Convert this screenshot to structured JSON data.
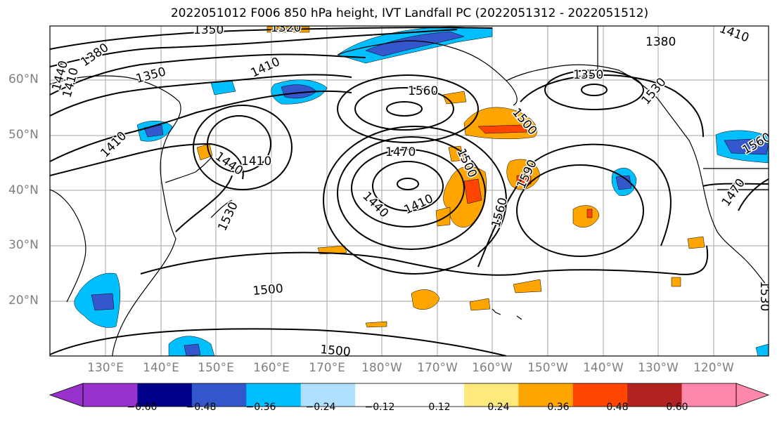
{
  "title": "2022051012 F006 850 hPa height, IVT Landfall PC (2022051312 - 2022051512)",
  "lat_labels": [
    "60°N",
    "50°N",
    "40°N",
    "30°N",
    "20°N"
  ],
  "lon_labels": [
    "130°E",
    "140°E",
    "150°E",
    "160°E",
    "170°E",
    "180°W",
    "170°W",
    "160°W",
    "150°W",
    "140°W",
    "130°W",
    "120°W"
  ],
  "contour_labels": [
    "1350",
    "1320",
    "1380",
    "1410",
    "1440",
    "1350",
    "1410",
    "1560",
    "1410",
    "1440",
    "1470",
    "1500",
    "1410",
    "1440",
    "1530",
    "1590",
    "1560",
    "1380",
    "1350",
    "1410",
    "1500",
    "1530",
    "1470",
    "1530",
    "1500",
    "1410",
    "1500",
    "1560"
  ],
  "colorbar": {
    "colors": [
      "#9932cc",
      "#00008b",
      "#3457cd",
      "#00bfff",
      "#b0e0ff",
      "#ffffff",
      "#ffffff",
      "#ffe87c",
      "#ffa500",
      "#ff4500",
      "#b22222",
      "#ff88aa"
    ],
    "tick_labels": [
      "−0.60",
      "−0.48",
      "−0.36",
      "−0.24",
      "−0.12",
      "0.12",
      "0.24",
      "0.36",
      "0.48",
      "0.60"
    ]
  },
  "colors": {
    "land_outline": "#000000",
    "grid": "#808080",
    "contour": "#000000"
  }
}
